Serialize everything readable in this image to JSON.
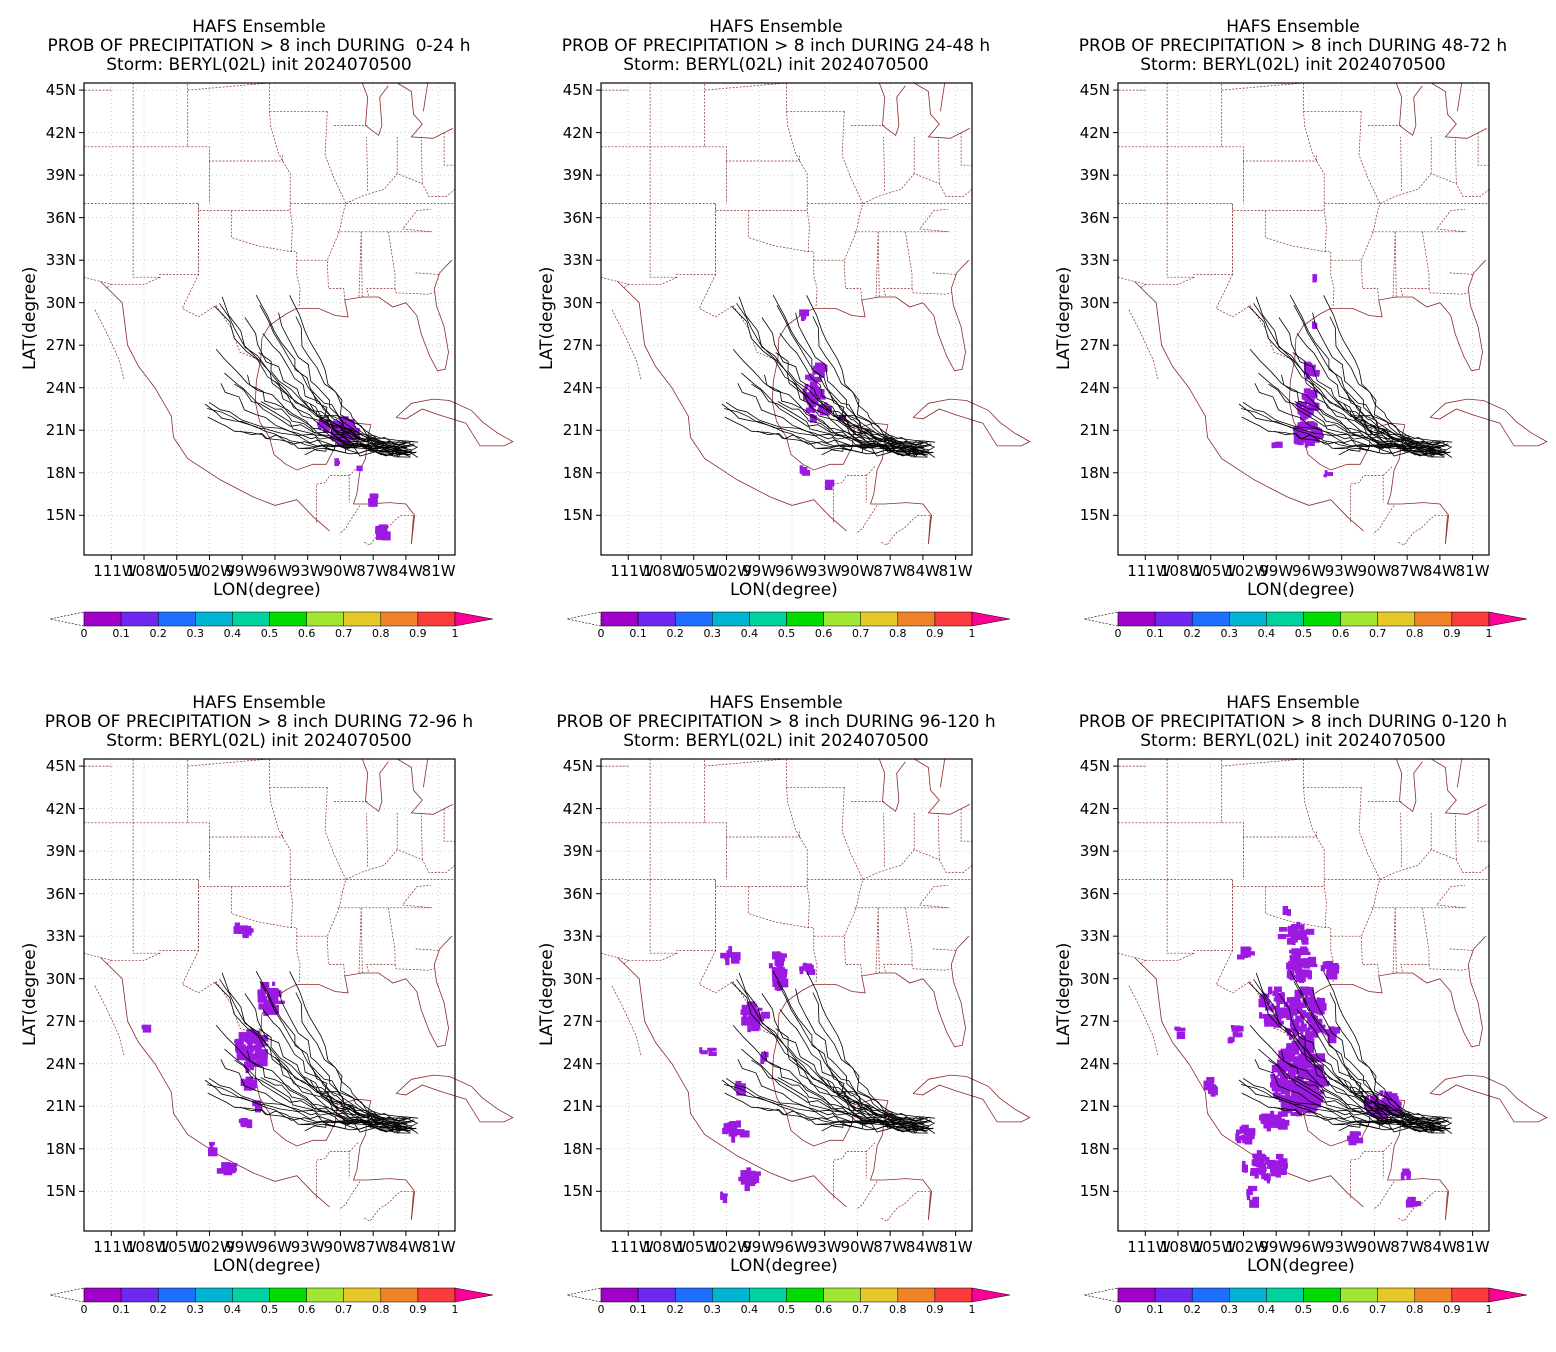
{
  "panels": [
    {
      "title1": "HAFS Ensemble",
      "title2": "PROB OF PRECIPITATION > 8 inch DURING  0-24 h",
      "title3": "Storm: BERYL(02L) init 2024070500",
      "pattern": "a"
    },
    {
      "title1": "HAFS Ensemble",
      "title2": "PROB OF PRECIPITATION > 8 inch DURING 24-48 h",
      "title3": "Storm: BERYL(02L) init 2024070500",
      "pattern": "b"
    },
    {
      "title1": "HAFS Ensemble",
      "title2": "PROB OF PRECIPITATION > 8 inch DURING 48-72 h",
      "title3": "Storm: BERYL(02L) init 2024070500",
      "pattern": "c"
    },
    {
      "title1": "HAFS Ensemble",
      "title2": "PROB OF PRECIPITATION > 8 inch DURING 72-96 h",
      "title3": "Storm: BERYL(02L) init 2024070500",
      "pattern": "d"
    },
    {
      "title1": "HAFS Ensemble",
      "title2": "PROB OF PRECIPITATION > 8 inch DURING 96-120 h",
      "title3": "Storm: BERYL(02L) init 2024070500",
      "pattern": "e"
    },
    {
      "title1": "HAFS Ensemble",
      "title2": "PROB OF PRECIPITATION > 8 inch DURING 0-120 h",
      "title3": "Storm: BERYL(02L) init 2024070500",
      "pattern": "f"
    }
  ],
  "axes": {
    "xlabel": "LON(degree)",
    "ylabel": "LAT(degree)",
    "lat_ticks": [
      "45N",
      "42N",
      "39N",
      "36N",
      "33N",
      "30N",
      "27N",
      "24N",
      "21N",
      "18N",
      "15N"
    ],
    "lon_ticks": [
      "111W",
      "108W",
      "105W",
      "102W",
      "99W",
      "96W",
      "93W",
      "90W",
      "87W",
      "84W",
      "81W"
    ]
  },
  "colorbar": {
    "labels": [
      "0",
      "0.1",
      "0.2",
      "0.3",
      "0.4",
      "0.5",
      "0.6",
      "0.7",
      "0.8",
      "0.9",
      "1"
    ],
    "colors": [
      "#a000c8",
      "#6e28f0",
      "#1e6eff",
      "#00b4d2",
      "#00d2a0",
      "#00dc00",
      "#a0e632",
      "#e6c828",
      "#f08228",
      "#fa3c3c",
      "#ff0096"
    ]
  },
  "colors": {
    "track": "#000000",
    "border": "#8b2a2a",
    "prob": "#9b19e0",
    "grid": "#bbbbbb"
  }
}
